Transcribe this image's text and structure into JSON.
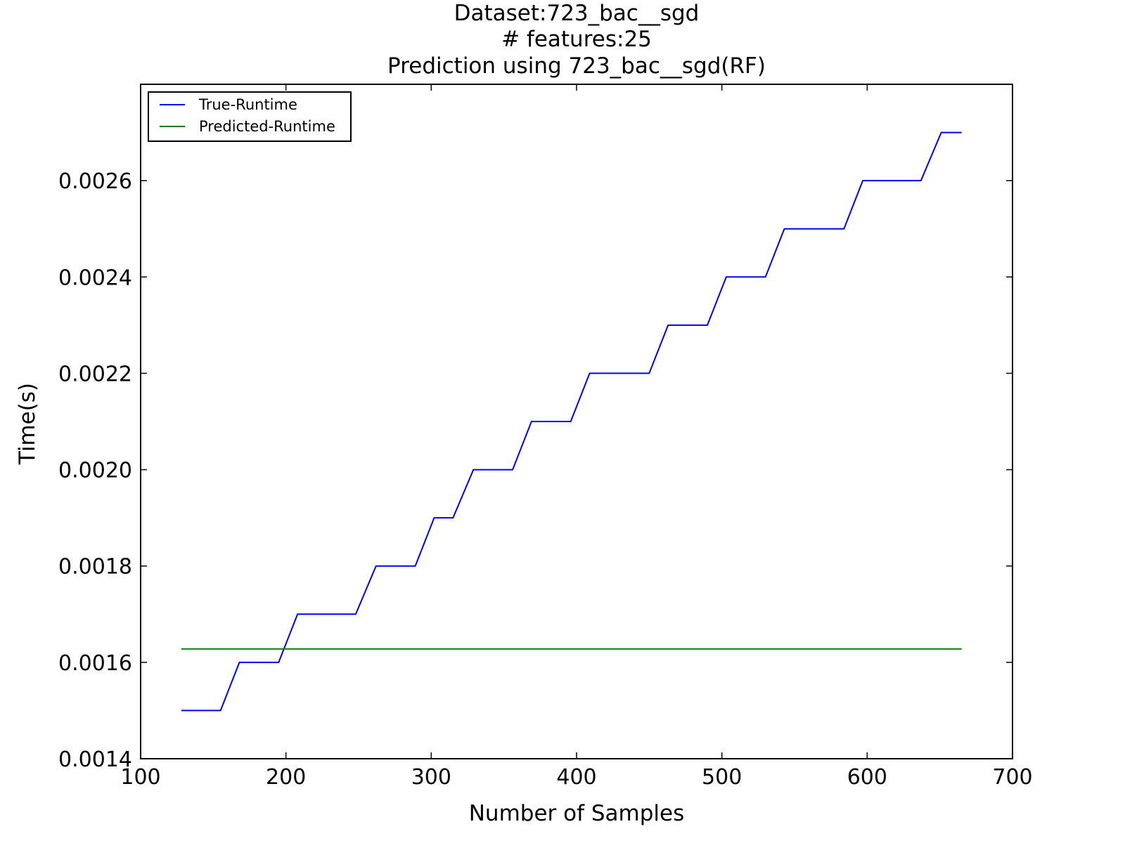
{
  "chart_data": {
    "type": "line",
    "title": [
      "Dataset:723_bac__sgd",
      "# features:25",
      "Prediction using 723_bac__sgd(RF)"
    ],
    "xlabel": "Number of Samples",
    "ylabel": "Time(s)",
    "xlim": [
      100,
      700
    ],
    "ylim": [
      0.0014,
      0.0028
    ],
    "xticks": [
      100,
      200,
      300,
      400,
      500,
      600,
      700
    ],
    "xtick_labels": [
      "100",
      "200",
      "300",
      "400",
      "500",
      "600",
      "700"
    ],
    "yticks": [
      0.0014,
      0.0016,
      0.0018,
      0.002,
      0.0022,
      0.0024,
      0.0026
    ],
    "ytick_labels": [
      "0.0014",
      "0.0016",
      "0.0018",
      "0.0020",
      "0.0022",
      "0.0024",
      "0.0026"
    ],
    "grid": false,
    "legend_position": "top-left",
    "series": [
      {
        "name": "True-Runtime",
        "color": "#0000ff",
        "points": [
          [
            128,
            0.0015
          ],
          [
            155,
            0.0015
          ],
          [
            168,
            0.0016
          ],
          [
            195,
            0.0016
          ],
          [
            208,
            0.0017
          ],
          [
            248,
            0.0017
          ],
          [
            262,
            0.0018
          ],
          [
            289,
            0.0018
          ],
          [
            302,
            0.0019
          ],
          [
            315,
            0.0019
          ],
          [
            329,
            0.002
          ],
          [
            356,
            0.002
          ],
          [
            369,
            0.0021
          ],
          [
            396,
            0.0021
          ],
          [
            409,
            0.0022
          ],
          [
            450,
            0.0022
          ],
          [
            463,
            0.0023
          ],
          [
            490,
            0.0023
          ],
          [
            503,
            0.0024
          ],
          [
            530,
            0.0024
          ],
          [
            543,
            0.0025
          ],
          [
            584,
            0.0025
          ],
          [
            597,
            0.0026
          ],
          [
            637,
            0.0026
          ],
          [
            651,
            0.0027
          ],
          [
            665,
            0.0027
          ]
        ]
      },
      {
        "name": "Predicted-Runtime",
        "color": "#008000",
        "points": [
          [
            128,
            0.001628
          ],
          [
            665,
            0.001628
          ]
        ]
      }
    ]
  }
}
